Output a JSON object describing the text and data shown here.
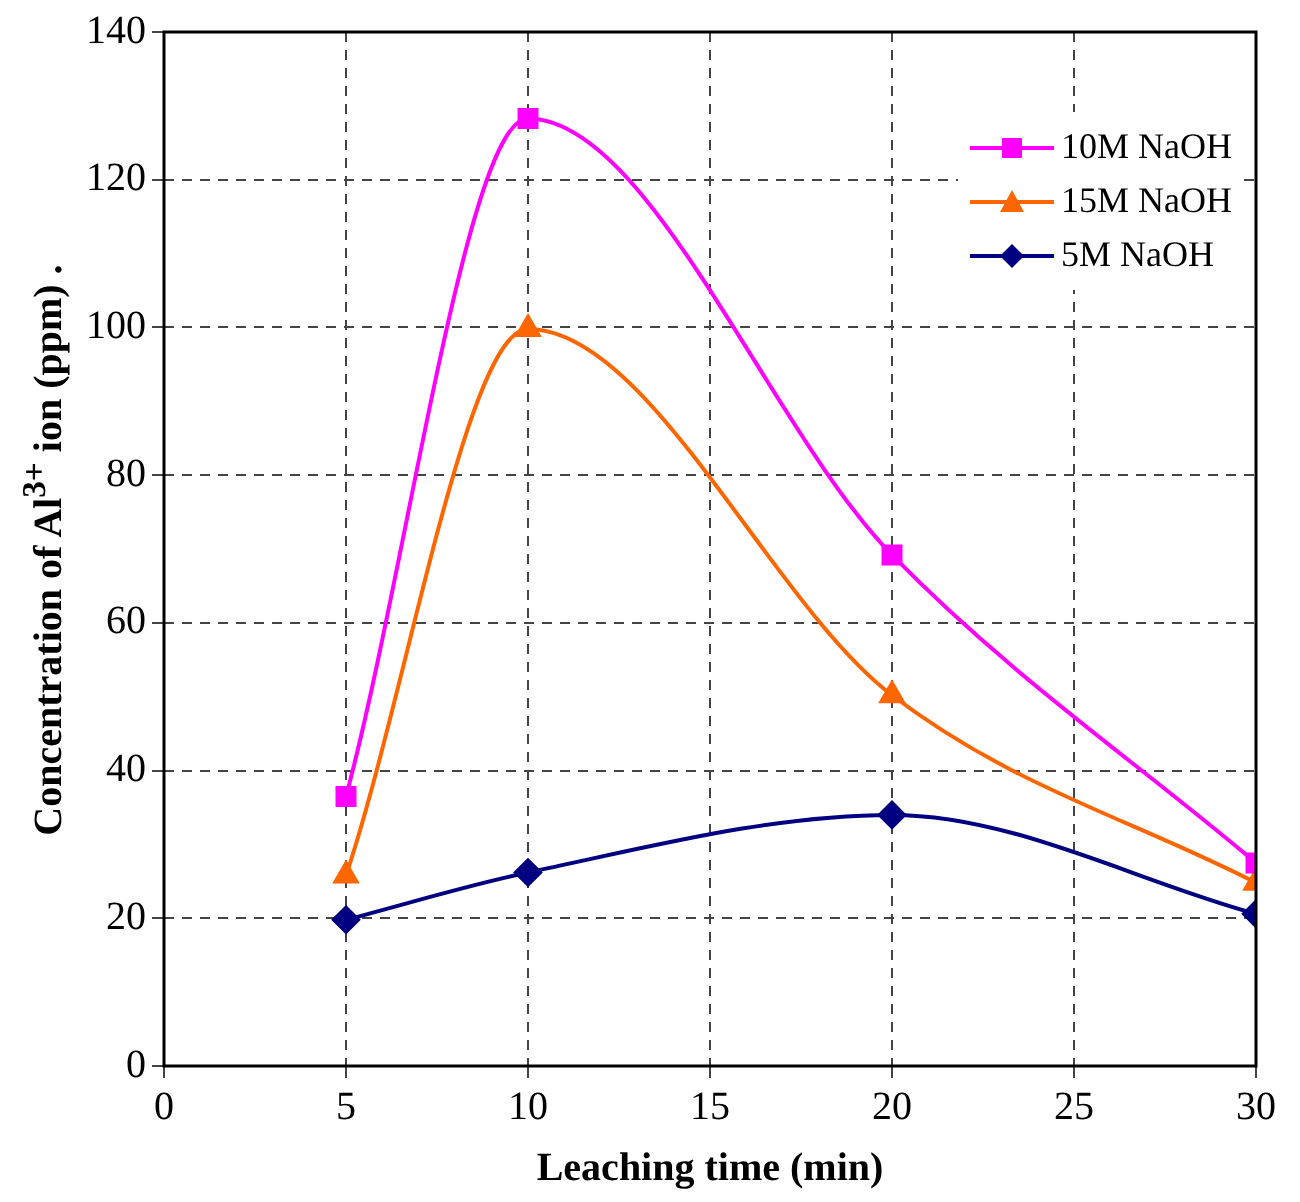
{
  "chart_data": {
    "type": "line",
    "xlabel": "Leaching time (min)",
    "ylabel": "Concentration of Al$^{3+}$ ion (ppm) .",
    "x": [
      5,
      10,
      20,
      30
    ],
    "series": [
      {
        "name": "10M NaOH",
        "color": "#ff00ff",
        "marker": "square",
        "values": [
          36.5,
          128.3,
          69.2,
          27.5
        ]
      },
      {
        "name": "15M NaOH",
        "color": "#ff6600",
        "marker": "triangle",
        "values": [
          25.8,
          99.8,
          50.2,
          24.8
        ]
      },
      {
        "name": "5M NaOH",
        "color": "#000080",
        "marker": "diamond",
        "values": [
          19.8,
          26.2,
          34.0,
          20.6
        ]
      }
    ],
    "xlim": [
      0,
      30
    ],
    "xticks": [
      0,
      5,
      10,
      15,
      20,
      25,
      30
    ],
    "ylim": [
      0,
      140
    ],
    "yticks": [
      0,
      20,
      40,
      60,
      80,
      100,
      120,
      140
    ],
    "grid": true,
    "legend": "top right",
    "line_style": "solid"
  }
}
